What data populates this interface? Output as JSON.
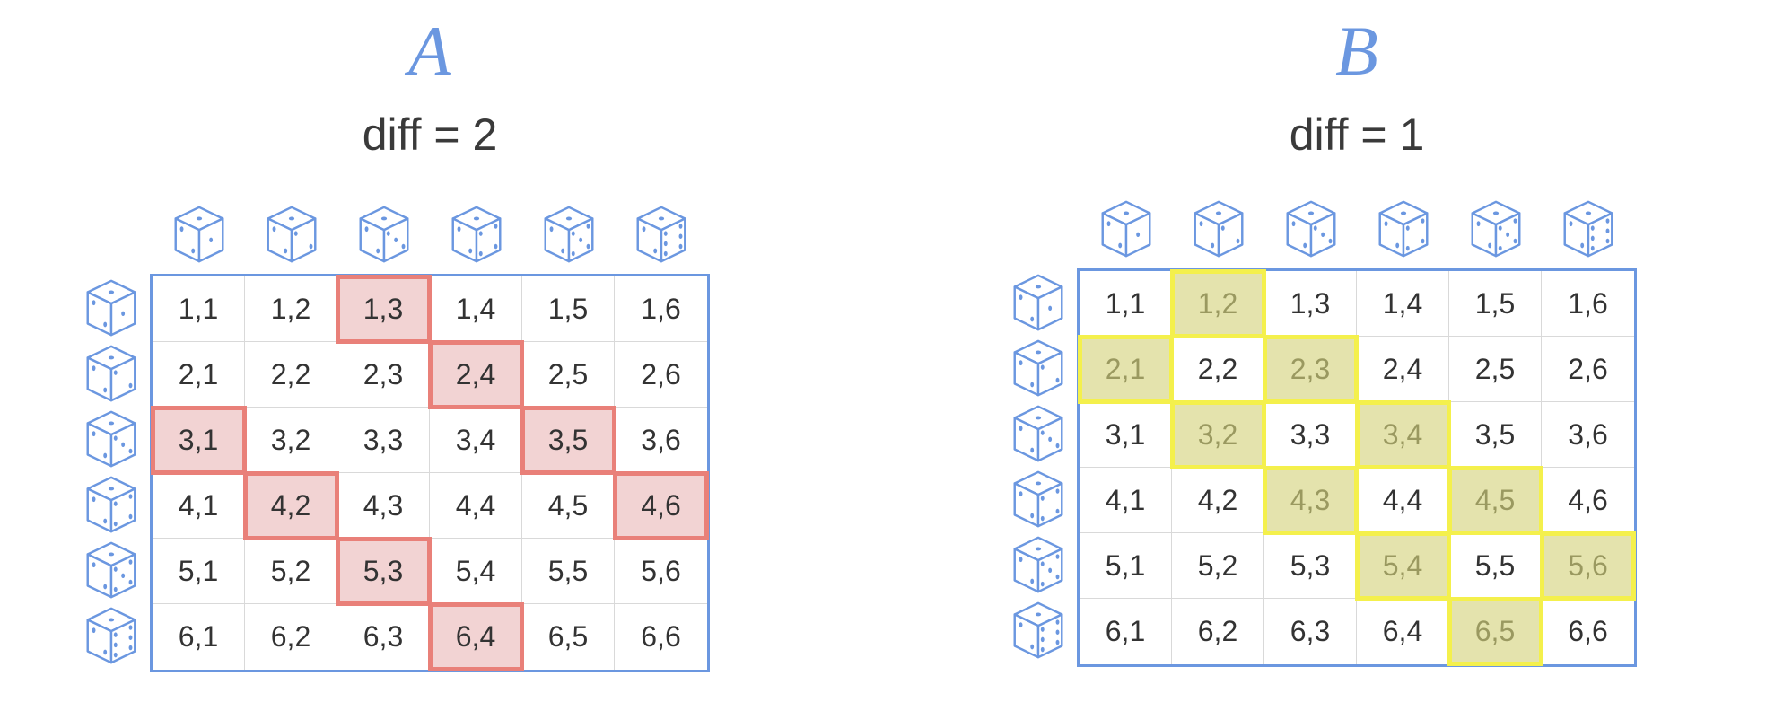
{
  "panels": [
    {
      "id": "a",
      "letter": "A",
      "diff_label": "diff = 2",
      "highlight_color": "#e98079",
      "highlighted": [
        "1,3",
        "2,4",
        "3,1",
        "3,5",
        "4,2",
        "4,6",
        "5,3",
        "6,4"
      ]
    },
    {
      "id": "b",
      "letter": "B",
      "diff_label": "diff = 1",
      "highlight_color": "#f4f04c",
      "highlighted": [
        "1,2",
        "2,1",
        "2,3",
        "3,2",
        "3,4",
        "4,3",
        "4,5",
        "5,4",
        "5,6",
        "6,5"
      ]
    }
  ],
  "column_dice": [
    1,
    2,
    3,
    4,
    5,
    6
  ],
  "row_dice": [
    1,
    2,
    3,
    4,
    5,
    6
  ],
  "cells": [
    [
      "1,1",
      "1,2",
      "1,3",
      "1,4",
      "1,5",
      "1,6"
    ],
    [
      "2,1",
      "2,2",
      "2,3",
      "2,4",
      "2,5",
      "2,6"
    ],
    [
      "3,1",
      "3,2",
      "3,3",
      "3,4",
      "3,5",
      "3,6"
    ],
    [
      "4,1",
      "4,2",
      "4,3",
      "4,4",
      "4,5",
      "4,6"
    ],
    [
      "5,1",
      "5,2",
      "5,3",
      "5,4",
      "5,5",
      "5,6"
    ],
    [
      "6,1",
      "6,2",
      "6,3",
      "6,4",
      "6,5",
      "6,6"
    ]
  ],
  "icon": "die-icon",
  "colors": {
    "accent": "#6b97e0",
    "text": "#333333"
  }
}
